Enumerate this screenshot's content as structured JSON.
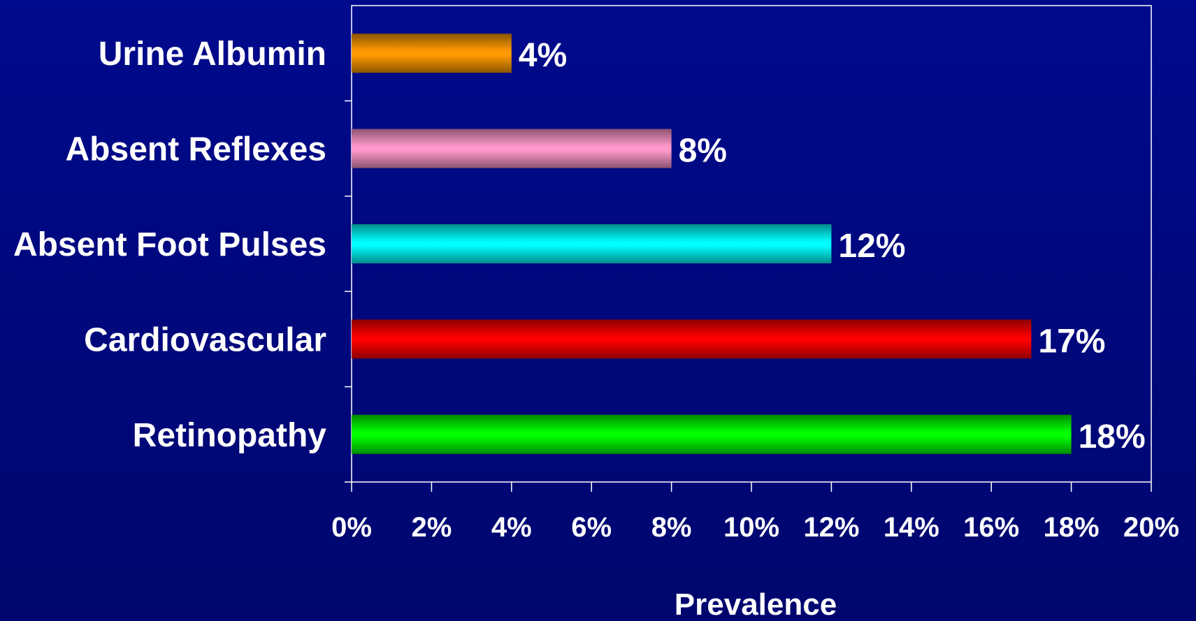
{
  "chart_data": {
    "type": "bar",
    "orientation": "horizontal",
    "categories": [
      "Urine Albumin",
      "Absent Reflexes",
      "Absent Foot Pulses",
      "Cardiovascular",
      "Retinopathy"
    ],
    "values": [
      4,
      8,
      12,
      17,
      18
    ],
    "value_labels": [
      "4%",
      "8%",
      "12%",
      "17%",
      "18%"
    ],
    "bar_colors": [
      "#ff9a00",
      "#ff99cc",
      "#00ffff",
      "#ff0000",
      "#00ff00"
    ],
    "xlabel": "Prevalence",
    "ylabel": "",
    "xlim": [
      0,
      20
    ],
    "x_ticks": [
      0,
      2,
      4,
      6,
      8,
      10,
      12,
      14,
      16,
      18,
      20
    ],
    "x_tick_labels": [
      "0%",
      "2%",
      "4%",
      "6%",
      "8%",
      "10%",
      "12%",
      "14%",
      "16%",
      "18%",
      "20%"
    ],
    "grid": false,
    "legend": "none",
    "background_color": "#000a8c",
    "axis_color": "#ffffff"
  }
}
